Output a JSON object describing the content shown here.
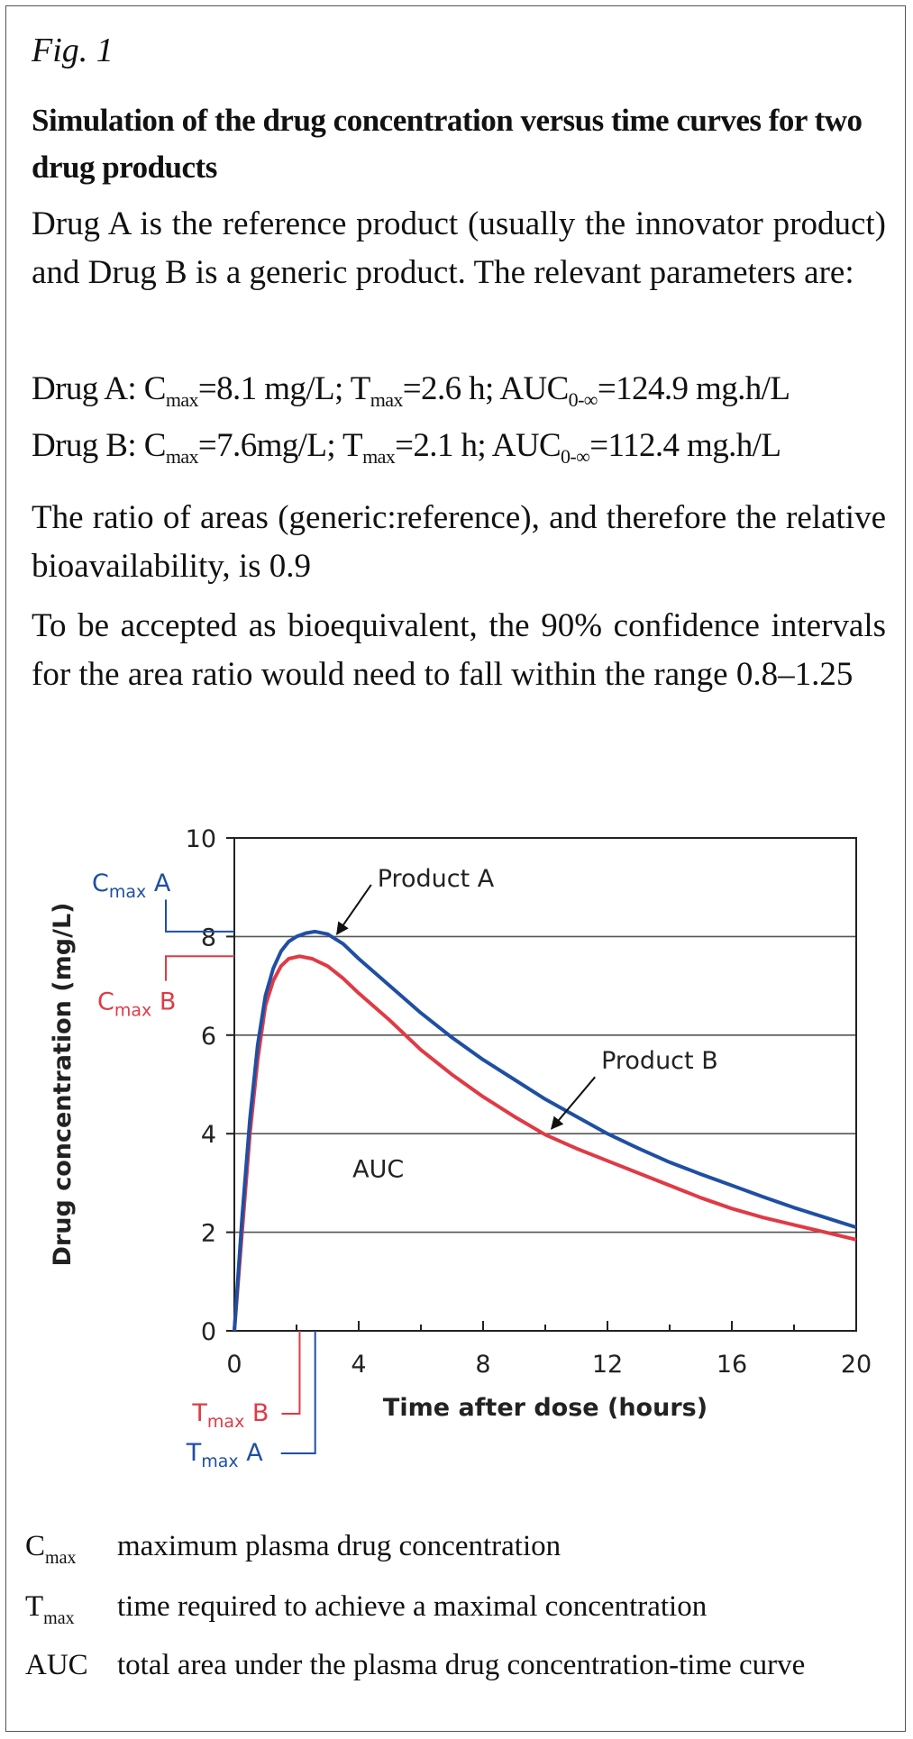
{
  "fig_label": "Fig. 1",
  "title": "Simulation of the drug concentration versus time curves for two drug products",
  "intro": "Drug A is the reference product (usually the innovator product) and Drug B is a generic product. The relevant parameters are:",
  "params": {
    "a": {
      "drug": "Drug A:",
      "cmax_sym": "C",
      "cmax_sub": "max",
      "cmax_val": "=8.1 mg/L;",
      "tmax_sym": "T",
      "tmax_sub": "max",
      "tmax_val": "=2.6 h;",
      "auc_sym": "AUC",
      "auc_sub": "0-∞",
      "auc_val": "=124.9 mg.h/L"
    },
    "b": {
      "drug": "Drug B:",
      "cmax_sym": "C",
      "cmax_sub": "max",
      "cmax_val": "=7.6mg/L;",
      "tmax_sym": "T",
      "tmax_sub": "max",
      "tmax_val": "=2.1 h;",
      "auc_sym": "AUC",
      "auc_sub": "0-∞",
      "auc_val": "=112.4 mg.h/L"
    }
  },
  "ratio_text": "The ratio of areas (generic:reference), and therefore the relative bioavailability, is 0.9",
  "bioequiv_text": "To be accepted as bioequivalent, the 90% confidence intervals for the area ratio would need to fall within the range 0.8–1.25",
  "legend": [
    {
      "term": "C",
      "sub": "max",
      "desc": "maximum plasma drug concentration"
    },
    {
      "term": "T",
      "sub": "max",
      "desc": "time required to achieve a maximal concentration"
    },
    {
      "term": "AUC",
      "sub": "",
      "desc": "total area under the plasma drug concentration-time curve"
    }
  ],
  "colors": {
    "product_a": "#1f4fa3",
    "product_b": "#e03a45",
    "grid": "#555555"
  },
  "chart_data": {
    "type": "line",
    "xlabel": "Time after dose (hours)",
    "ylabel": "Drug concentration (mg/L)",
    "xlim": [
      0,
      20
    ],
    "ylim": [
      0,
      10
    ],
    "xticks": [
      0,
      4,
      8,
      12,
      16,
      20
    ],
    "yticks": [
      0,
      2,
      4,
      6,
      8,
      10
    ],
    "grid": "horizontal",
    "series": [
      {
        "name": "Product A",
        "x": [
          0,
          0.25,
          0.5,
          0.75,
          1,
          1.25,
          1.5,
          1.75,
          2,
          2.3,
          2.6,
          3,
          3.5,
          4,
          5,
          6,
          7,
          8,
          9,
          10,
          11,
          12,
          13,
          14,
          15,
          16,
          17,
          18,
          19,
          20
        ],
        "y": [
          0,
          2.3,
          4.3,
          5.8,
          6.8,
          7.35,
          7.7,
          7.9,
          8.0,
          8.07,
          8.1,
          8.05,
          7.85,
          7.55,
          7.0,
          6.45,
          5.95,
          5.5,
          5.1,
          4.7,
          4.35,
          4.0,
          3.7,
          3.42,
          3.18,
          2.95,
          2.72,
          2.5,
          2.3,
          2.1
        ]
      },
      {
        "name": "Product B",
        "x": [
          0,
          0.25,
          0.5,
          0.75,
          1,
          1.25,
          1.5,
          1.75,
          2.1,
          2.5,
          3,
          3.5,
          4,
          5,
          6,
          7,
          8,
          9,
          10,
          11,
          12,
          13,
          14,
          15,
          16,
          17,
          18,
          19,
          20
        ],
        "y": [
          0,
          2.0,
          4.0,
          5.5,
          6.6,
          7.1,
          7.4,
          7.55,
          7.6,
          7.55,
          7.4,
          7.15,
          6.85,
          6.3,
          5.7,
          5.2,
          4.75,
          4.35,
          3.98,
          3.7,
          3.45,
          3.2,
          2.95,
          2.7,
          2.48,
          2.3,
          2.15,
          2.0,
          1.85
        ]
      }
    ],
    "annotations": {
      "product_a_label": "Product A",
      "product_b_label": "Product B",
      "auc_label": "AUC",
      "cmax_a": {
        "main": "C",
        "sub": "max",
        "suffix": " A",
        "value": 8.1
      },
      "cmax_b": {
        "main": "C",
        "sub": "max",
        "suffix": " B",
        "value": 7.6
      },
      "tmax_a": {
        "main": "T",
        "sub": "max",
        "suffix": " A",
        "value": 2.6
      },
      "tmax_b": {
        "main": "T",
        "sub": "max",
        "suffix": " B",
        "value": 2.1
      }
    }
  }
}
